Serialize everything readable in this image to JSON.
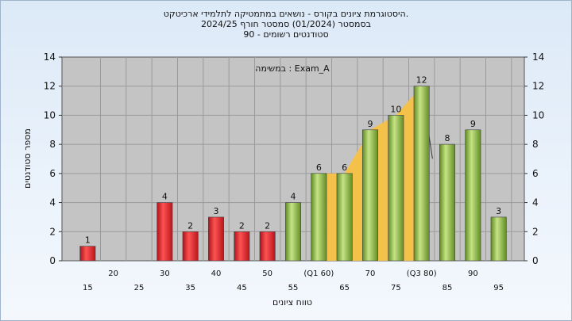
{
  "titles": {
    "line1": "היסטוגרמת ציונים בקורס - נושאים במתמטיקה לתלמידי ארכיטקט.",
    "line2": "בסמסטר  (01/2024)  סמסטר חורף  2024/25",
    "line3": "סטודנטים רשומים - 90"
  },
  "chart_data": {
    "type": "bar",
    "xlabel": "טווח ציונים",
    "ylabel": "מספר סטודנטים",
    "ylim": [
      0,
      14
    ],
    "yticks": [
      0,
      2,
      4,
      6,
      8,
      10,
      12,
      14
    ],
    "grid": true,
    "annotation": "במשימה : Exam_A",
    "categories": [
      "15",
      "20",
      "25",
      "30",
      "35",
      "40",
      "45",
      "50",
      "55",
      "60",
      "65",
      "70",
      "75",
      "80",
      "85",
      "90",
      "95"
    ],
    "tick_labels": [
      "15",
      "20",
      "25",
      "30",
      "35",
      "40",
      "45",
      "50",
      "55",
      "(Q1 60)",
      "65",
      "70",
      "75",
      "(Q3 80)",
      "85",
      "90",
      "95"
    ],
    "values": [
      1,
      0,
      0,
      4,
      2,
      3,
      2,
      2,
      4,
      6,
      6,
      9,
      10,
      12,
      8,
      9,
      3
    ],
    "data_labels": [
      "1",
      "",
      "",
      "4",
      "2",
      "3",
      "2",
      "2",
      "4",
      "6",
      "6",
      "9",
      "10",
      "12",
      "8",
      "9",
      "3"
    ],
    "colors": {
      "fail": "#e02828",
      "pass": "#8cbf3c",
      "iqr_band": "#f7c244",
      "grid": "#9a9a9a",
      "plot_bg": "#c4c4c4"
    },
    "pass_threshold": 55,
    "iqr": {
      "q1": 60,
      "q3": 80
    }
  }
}
